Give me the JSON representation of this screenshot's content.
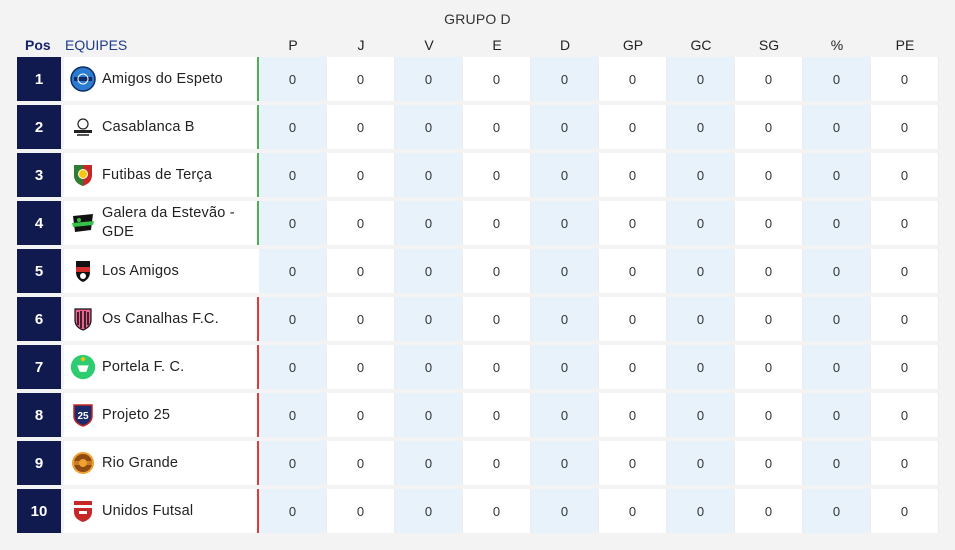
{
  "group_title": "GRUPO D",
  "headers": {
    "pos": "Pos",
    "team": "EQUIPES",
    "stats": [
      "P",
      "J",
      "V",
      "E",
      "D",
      "GP",
      "GC",
      "SG",
      "%",
      "PE"
    ]
  },
  "colors": {
    "pos_bg": "#111a4f",
    "qualified": "#4caf50",
    "neutral": "#ffffff",
    "eliminated": "#e53935",
    "stripe": "#e8f2fb"
  },
  "rows": [
    {
      "pos": "1",
      "team": "Amigos do Espeto",
      "logo": "amigos-do-espeto-crest-icon",
      "status": "qualified",
      "stats": [
        "0",
        "0",
        "0",
        "0",
        "0",
        "0",
        "0",
        "0",
        "0",
        "0"
      ]
    },
    {
      "pos": "2",
      "team": "Casablanca B",
      "logo": "casablanca-crest-icon",
      "status": "qualified",
      "stats": [
        "0",
        "0",
        "0",
        "0",
        "0",
        "0",
        "0",
        "0",
        "0",
        "0"
      ]
    },
    {
      "pos": "3",
      "team": "Futibas de Terça",
      "logo": "futibas-crest-icon",
      "status": "qualified",
      "stats": [
        "0",
        "0",
        "0",
        "0",
        "0",
        "0",
        "0",
        "0",
        "0",
        "0"
      ]
    },
    {
      "pos": "4",
      "team": "Galera da Estevão - GDE",
      "logo": "gde-crest-icon",
      "status": "qualified",
      "stats": [
        "0",
        "0",
        "0",
        "0",
        "0",
        "0",
        "0",
        "0",
        "0",
        "0"
      ]
    },
    {
      "pos": "5",
      "team": "Los Amigos",
      "logo": "los-amigos-crest-icon",
      "status": "neutral",
      "stats": [
        "0",
        "0",
        "0",
        "0",
        "0",
        "0",
        "0",
        "0",
        "0",
        "0"
      ]
    },
    {
      "pos": "6",
      "team": "Os Canalhas F.C.",
      "logo": "os-canalhas-crest-icon",
      "status": "eliminated",
      "stats": [
        "0",
        "0",
        "0",
        "0",
        "0",
        "0",
        "0",
        "0",
        "0",
        "0"
      ]
    },
    {
      "pos": "7",
      "team": "Portela F. C.",
      "logo": "portela-crest-icon",
      "status": "eliminated",
      "stats": [
        "0",
        "0",
        "0",
        "0",
        "0",
        "0",
        "0",
        "0",
        "0",
        "0"
      ]
    },
    {
      "pos": "8",
      "team": "Projeto 25",
      "logo": "projeto-25-crest-icon",
      "status": "eliminated",
      "stats": [
        "0",
        "0",
        "0",
        "0",
        "0",
        "0",
        "0",
        "0",
        "0",
        "0"
      ]
    },
    {
      "pos": "9",
      "team": "Rio Grande",
      "logo": "rio-grande-crest-icon",
      "status": "eliminated",
      "stats": [
        "0",
        "0",
        "0",
        "0",
        "0",
        "0",
        "0",
        "0",
        "0",
        "0"
      ]
    },
    {
      "pos": "10",
      "team": "Unidos Futsal",
      "logo": "unidos-futsal-crest-icon",
      "status": "eliminated",
      "stats": [
        "0",
        "0",
        "0",
        "0",
        "0",
        "0",
        "0",
        "0",
        "0",
        "0"
      ]
    }
  ],
  "logo_labels": {
    "projeto_25": "25"
  }
}
